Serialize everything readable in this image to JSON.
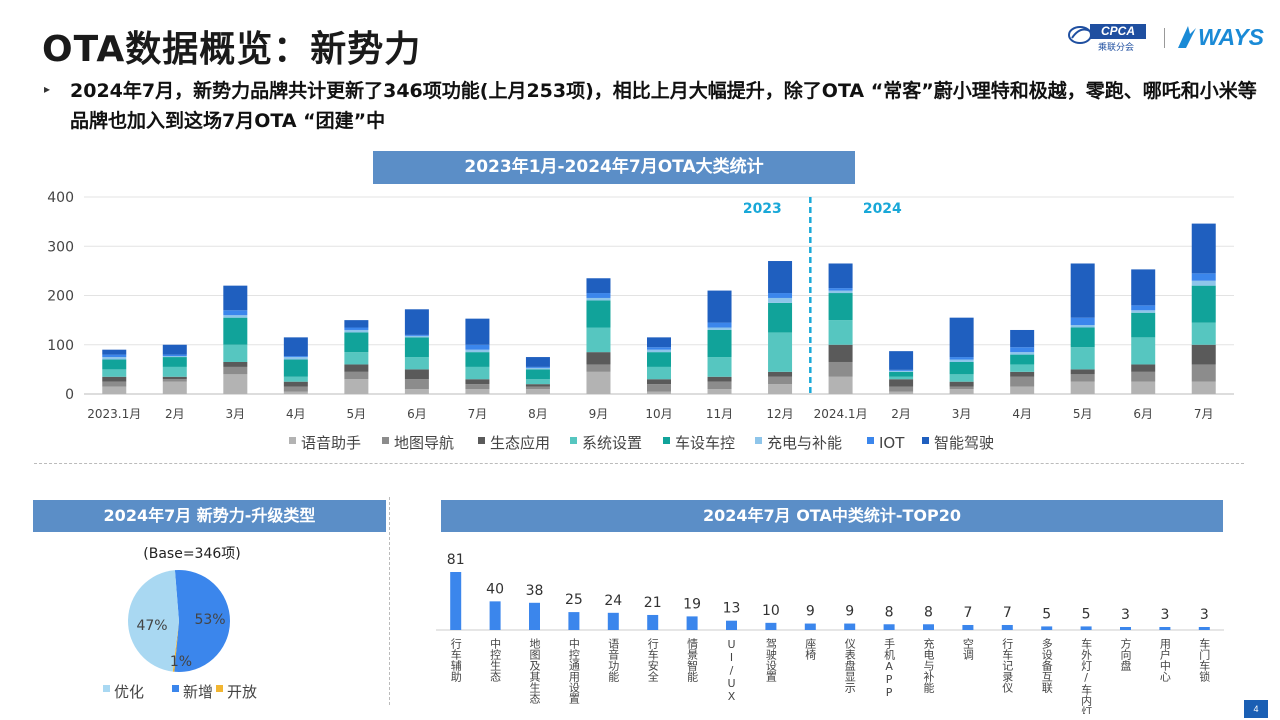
{
  "page": {
    "title": "OTA数据概览：新势力",
    "bullet": "2024年7月，新势力品牌共计更新了346项功能(上月253项)，相比上月大幅提升，除了OTA “常客”蔚小理特和极越，零跑、哪吒和小米等品牌也加入到这场7月OTA “团建”中",
    "bullet_marker": "▸",
    "page_number": "4"
  },
  "logos": {
    "cpca_label": "CPCA",
    "cpca_sub": "乘联分会",
    "ways_label": "WAYS"
  },
  "chart_data": [
    {
      "type": "bar",
      "stacked": true,
      "title": "2023年1月-2024年7月OTA大类统计",
      "categories": [
        "2023.1月",
        "2月",
        "3月",
        "4月",
        "5月",
        "6月",
        "7月",
        "8月",
        "9月",
        "10月",
        "11月",
        "12月",
        "2024.1月",
        "2月",
        "3月",
        "4月",
        "5月",
        "6月",
        "7月"
      ],
      "ylim": [
        0,
        400
      ],
      "yticks": [
        0,
        100,
        200,
        300,
        400
      ],
      "grid": true,
      "legend_position": "bottom",
      "year_labels": [
        "2023",
        "2024"
      ],
      "series": [
        {
          "name": "语音助手",
          "color": "#b3b3b3",
          "values": [
            15,
            25,
            40,
            5,
            30,
            10,
            10,
            10,
            45,
            5,
            10,
            20,
            35,
            5,
            10,
            15,
            25,
            25,
            25
          ]
        },
        {
          "name": "地图导航",
          "color": "#8c8c8c",
          "values": [
            10,
            5,
            15,
            10,
            15,
            20,
            10,
            5,
            15,
            15,
            15,
            15,
            30,
            10,
            5,
            20,
            15,
            20,
            35
          ]
        },
        {
          "name": "生态应用",
          "color": "#5a5a5a",
          "values": [
            10,
            5,
            10,
            10,
            15,
            20,
            10,
            5,
            25,
            10,
            10,
            10,
            35,
            15,
            10,
            10,
            10,
            15,
            40
          ]
        },
        {
          "name": "系统设置",
          "color": "#56c6c0",
          "values": [
            15,
            20,
            35,
            10,
            25,
            25,
            25,
            10,
            50,
            25,
            40,
            80,
            50,
            5,
            15,
            15,
            45,
            55,
            45
          ]
        },
        {
          "name": "车设车控",
          "color": "#11a39a",
          "values": [
            20,
            20,
            55,
            35,
            40,
            40,
            30,
            20,
            55,
            30,
            55,
            60,
            55,
            10,
            25,
            20,
            40,
            50,
            75
          ]
        },
        {
          "name": "充电与补能",
          "color": "#8ec5ea",
          "values": [
            5,
            2,
            5,
            5,
            5,
            3,
            5,
            3,
            5,
            5,
            5,
            10,
            5,
            2,
            5,
            5,
            5,
            5,
            10
          ]
        },
        {
          "name": "IOT",
          "color": "#3b86ec",
          "values": [
            5,
            3,
            10,
            2,
            5,
            2,
            10,
            2,
            10,
            5,
            10,
            10,
            5,
            2,
            5,
            10,
            15,
            10,
            15
          ]
        },
        {
          "name": "智能驾驶",
          "color": "#1f5fbf",
          "values": [
            10,
            20,
            50,
            38,
            15,
            52,
            53,
            20,
            30,
            20,
            65,
            65,
            50,
            38,
            80,
            35,
            110,
            73,
            101
          ]
        }
      ]
    },
    {
      "type": "pie",
      "title": "2024年7月 新势力-升级类型",
      "subtitle": "(Base=346项)",
      "legend_position": "bottom",
      "slices": [
        {
          "name": "优化",
          "value": 47,
          "label": "47%",
          "color": "#a9d8f2"
        },
        {
          "name": "新增",
          "value": 53,
          "label": "53%",
          "color": "#3b86ec"
        },
        {
          "name": "开放",
          "value": 0.5,
          "label": "1%",
          "color": "#f2b632"
        }
      ]
    },
    {
      "type": "bar",
      "title": "2024年7月 OTA中类统计-TOP20",
      "color": "#3b86ec",
      "categories": [
        "行车辅助",
        "中控生态",
        "地图及其生态",
        "中控通用设置",
        "语音功能",
        "行车安全",
        "情景智能",
        "UI/UX",
        "驾驶设置",
        "座椅",
        "仪表盘显示",
        "手机APP",
        "充电与补能",
        "空调",
        "行车记录仪",
        "多设备互联",
        "车外灯/车内灯",
        "方向盘",
        "用户中心",
        "车门车锁"
      ],
      "values": [
        81,
        40,
        38,
        25,
        24,
        21,
        19,
        13,
        10,
        9,
        9,
        8,
        8,
        7,
        7,
        5,
        5,
        3,
        3,
        3
      ]
    }
  ]
}
